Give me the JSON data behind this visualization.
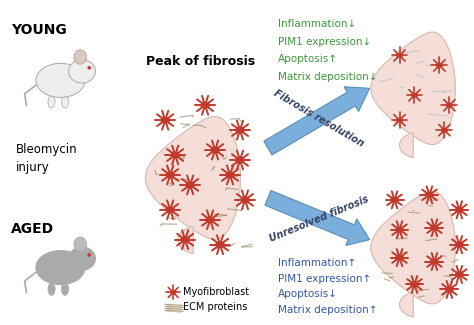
{
  "background_color": "#ffffff",
  "label_young": "YOUNG",
  "label_aged": "AGED",
  "label_bleomycin": "Bleomycin\ninjury",
  "label_peak": "Peak of fibrosis",
  "arrow1_label": "Fibrosis resolution",
  "arrow2_label": "Unresolved fibrosis",
  "arrow_color": "#7aaedb",
  "arrow_edge": "#5a8ebb",
  "green_color": "#3a9a3a",
  "blue_color": "#3355aa",
  "green_lines": [
    "Inflammation↓",
    "PIM1 expression↓",
    "Apoptosis↑",
    "Matrix deposition↓"
  ],
  "blue_lines": [
    "Inflammation↑",
    "PIM1 expression↑",
    "Apoptosis↓",
    "Matrix deposition↑"
  ],
  "legend_myofib": "Myofibroblast",
  "legend_ecm": "ECM proteins",
  "red_color": "#c0392b",
  "ecm_color": "#9B8A6A",
  "lung_fill": "#f5ddd8",
  "lung_edge": "#d8b8b0",
  "mouse_white": "#f2f0ee",
  "mouse_grey": "#aaaaaa",
  "mouse_ear_white": "#e8d0c8",
  "mouse_ear_grey": "#cccccc"
}
